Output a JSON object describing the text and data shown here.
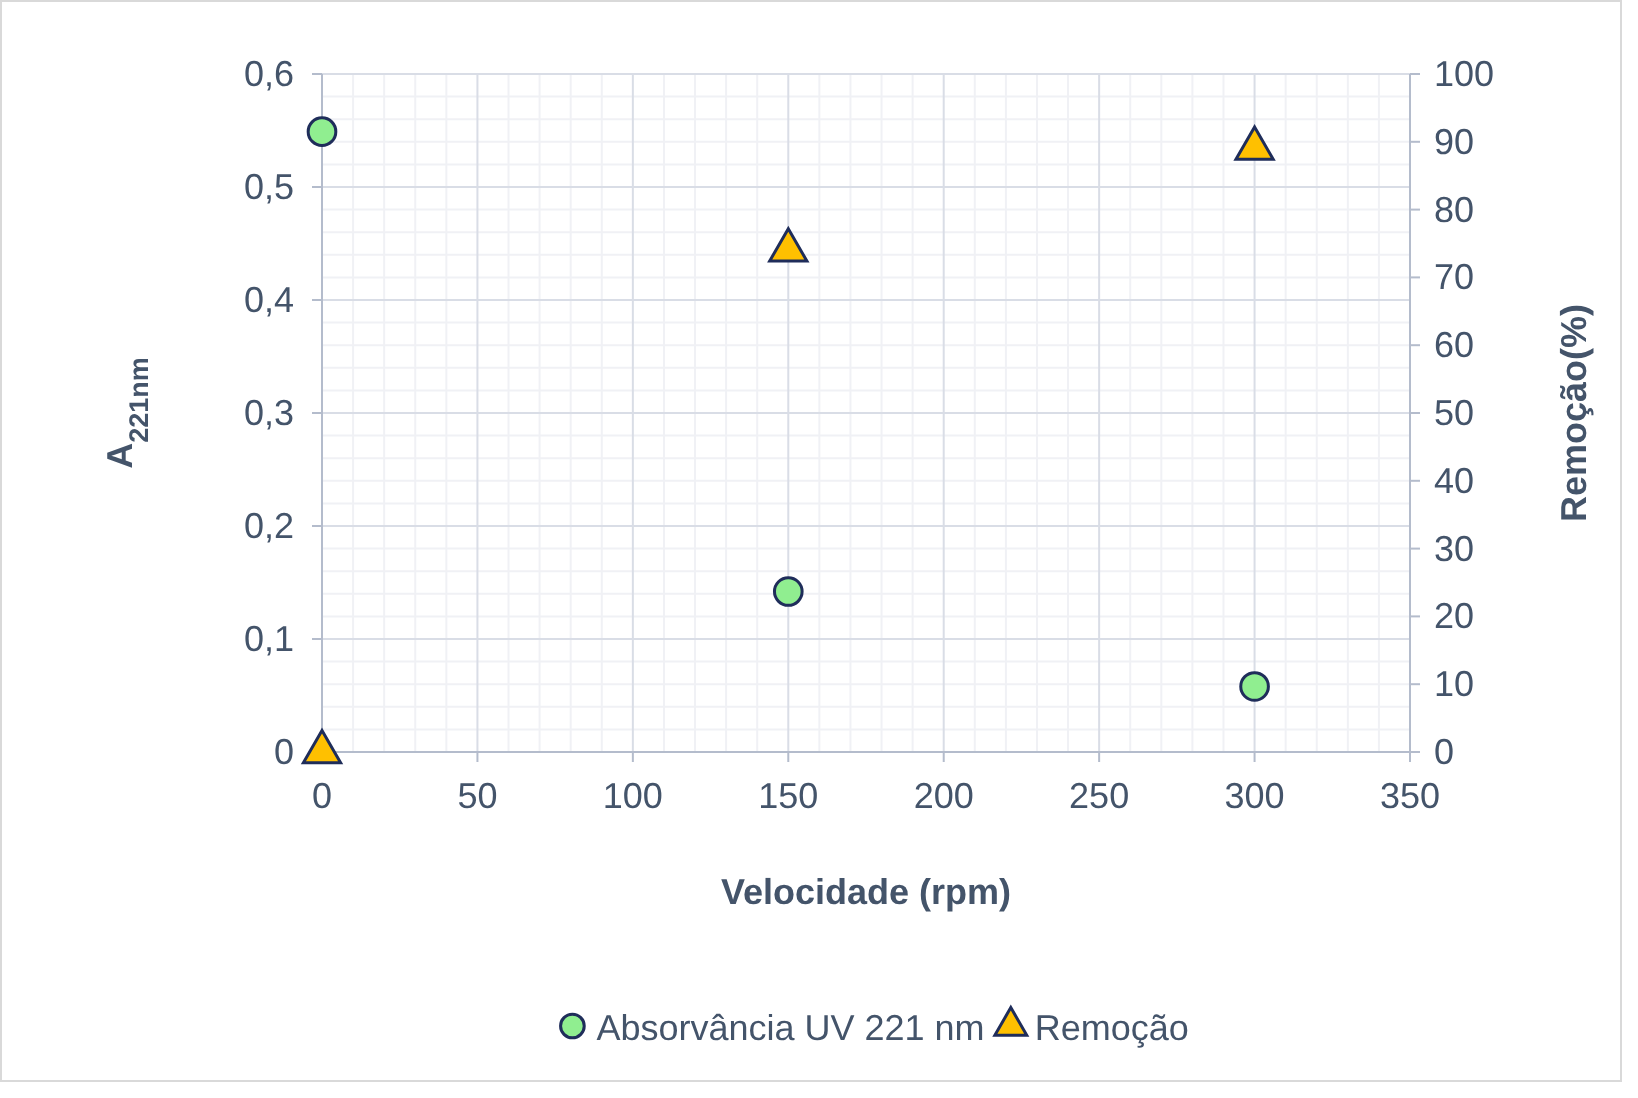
{
  "chart_data": {
    "type": "scatter",
    "xlabel": "Velocidade (rpm)",
    "ylabel": "A$_{221nm}$",
    "y2label": "Remoção(%)",
    "xlim": [
      0,
      350
    ],
    "xticks": [
      0,
      50,
      100,
      150,
      200,
      250,
      300,
      350
    ],
    "ylim": [
      0,
      0.6
    ],
    "yticks": [
      {
        "value": 0,
        "label": "0"
      },
      {
        "value": 0.1,
        "label": "0,1"
      },
      {
        "value": 0.2,
        "label": "0,2"
      },
      {
        "value": 0.3,
        "label": "0,3"
      },
      {
        "value": 0.4,
        "label": "0,4"
      },
      {
        "value": 0.5,
        "label": "0,5"
      },
      {
        "value": 0.6,
        "label": "0,6"
      }
    ],
    "y2lim": [
      0,
      100
    ],
    "y2ticks": [
      0,
      10,
      20,
      30,
      40,
      50,
      60,
      70,
      80,
      90,
      100
    ],
    "grid": true,
    "legend": "bottom",
    "x": [
      0,
      150,
      300
    ],
    "series": [
      {
        "name": "Absorvância UV 221 nm",
        "color": "#90ee90",
        "marker": "circle",
        "values": [
          0.549,
          0.142,
          0.058
        ]
      },
      {
        "name": "Remoção",
        "color": "#ffc000",
        "marker": "triangle",
        "axis": "y2",
        "values": [
          0,
          74,
          89
        ]
      }
    ]
  }
}
